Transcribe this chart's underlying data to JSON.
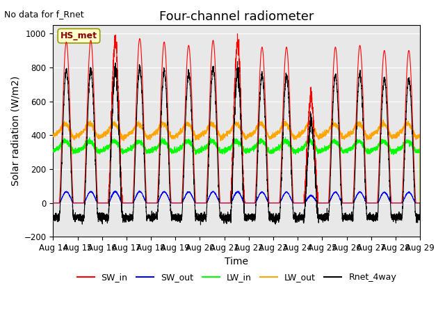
{
  "title": "Four-channel radiometer",
  "subtitle": "No data for f_Rnet",
  "xlabel": "Time",
  "ylabel": "Solar radiation (W/m2)",
  "ylim": [
    -200,
    1050
  ],
  "xlim": [
    0,
    15
  ],
  "x_tick_labels": [
    "Aug 14",
    "Aug 15",
    "Aug 16",
    "Aug 17",
    "Aug 18",
    "Aug 19",
    "Aug 20",
    "Aug 21",
    "Aug 22",
    "Aug 23",
    "Aug 24",
    "Aug 25",
    "Aug 26",
    "Aug 27",
    "Aug 28",
    "Aug 29"
  ],
  "legend_labels": [
    "SW_in",
    "SW_out",
    "LW_in",
    "LW_out",
    "Rnet_4way"
  ],
  "legend_colors": [
    "red",
    "blue",
    "lime",
    "orange",
    "black"
  ],
  "station_label": "HS_met",
  "n_days": 15,
  "peaks": [
    950,
    960,
    950,
    970,
    950,
    930,
    960,
    950,
    920,
    920,
    620,
    920,
    930,
    900,
    900
  ],
  "background_color": "#e8e8e8",
  "title_fontsize": 13,
  "axis_fontsize": 10,
  "tick_fontsize": 8.5,
  "day_start": 0.25,
  "day_end": 0.83
}
